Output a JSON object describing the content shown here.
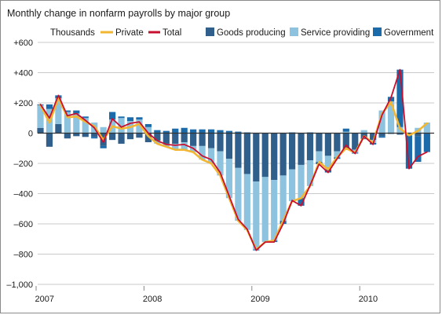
{
  "chart_data": {
    "type": "bar",
    "title": "Monthly change in nonfarm payrolls by major group",
    "ylabel": "Thousands",
    "xlabel": "",
    "ylim": [
      -1000,
      600
    ],
    "yticks": [
      600,
      400,
      200,
      0,
      -200,
      -400,
      -600,
      -800,
      -1000
    ],
    "ytick_labels": [
      "+600",
      "+400",
      "+200",
      "0",
      "–200",
      "–400",
      "–600",
      "–800",
      "–1,000"
    ],
    "x_axis": {
      "start": "2007-01",
      "end": "2010-08",
      "tick_labels": [
        "2007",
        "2008",
        "2009",
        "2010"
      ]
    },
    "grid": "horizontal",
    "legend": "top",
    "stacked": true,
    "colors": {
      "private": "#f2b632",
      "total": "#c8102e",
      "goods": "#2f5f8a",
      "service": "#8ec3df",
      "government": "#1b6aaa"
    },
    "months": [
      "2007-01",
      "2007-02",
      "2007-03",
      "2007-04",
      "2007-05",
      "2007-06",
      "2007-07",
      "2007-08",
      "2007-09",
      "2007-10",
      "2007-11",
      "2007-12",
      "2008-01",
      "2008-02",
      "2008-03",
      "2008-04",
      "2008-05",
      "2008-06",
      "2008-07",
      "2008-08",
      "2008-09",
      "2008-10",
      "2008-11",
      "2008-12",
      "2009-01",
      "2009-02",
      "2009-03",
      "2009-04",
      "2009-05",
      "2009-06",
      "2009-07",
      "2009-08",
      "2009-09",
      "2009-10",
      "2009-11",
      "2009-12",
      "2010-01",
      "2010-02",
      "2010-03",
      "2010-04",
      "2010-05",
      "2010-06",
      "2010-07",
      "2010-08"
    ],
    "series": [
      {
        "name": "Goods producing",
        "type": "bar",
        "values": [
          35,
          -90,
          60,
          -35,
          -20,
          -25,
          -25,
          -85,
          -45,
          -70,
          -40,
          -30,
          -60,
          -50,
          -70,
          -70,
          -60,
          -85,
          -85,
          -100,
          -120,
          -170,
          -230,
          -270,
          -320,
          -290,
          -310,
          -280,
          -240,
          -210,
          -180,
          -120,
          -150,
          -120,
          -110,
          -110,
          -40,
          -45,
          -20,
          -5,
          -10,
          -5,
          -20,
          -5
        ]
      },
      {
        "name": "Service providing",
        "type": "bar",
        "values": [
          150,
          160,
          170,
          140,
          130,
          100,
          70,
          40,
          90,
          100,
          80,
          90,
          40,
          -20,
          -20,
          -40,
          -50,
          -40,
          -90,
          -100,
          -160,
          -260,
          -350,
          -370,
          -450,
          -430,
          -400,
          -300,
          -210,
          -220,
          -170,
          -70,
          -90,
          -40,
          10,
          -20,
          20,
          -20,
          150,
          210,
          40,
          -10,
          35,
          70
        ]
      },
      {
        "name": "Government",
        "type": "bar",
        "values": [
          5,
          30,
          20,
          10,
          20,
          10,
          -10,
          -15,
          50,
          10,
          25,
          15,
          20,
          20,
          15,
          30,
          35,
          25,
          25,
          25,
          20,
          15,
          10,
          5,
          -5,
          0,
          -10,
          -20,
          5,
          -50,
          5,
          -15,
          -20,
          -10,
          20,
          -5,
          0,
          -10,
          -10,
          30,
          380,
          -220,
          -170,
          -120
        ]
      },
      {
        "name": "Private",
        "type": "line",
        "values": [
          185,
          70,
          230,
          105,
          110,
          75,
          45,
          -45,
          45,
          30,
          40,
          60,
          -20,
          -70,
          -90,
          -110,
          -110,
          -125,
          -175,
          -200,
          -280,
          -430,
          -580,
          -640,
          -770,
          -720,
          -710,
          -580,
          -450,
          -430,
          -350,
          -190,
          -240,
          -160,
          -100,
          -130,
          -20,
          -65,
          130,
          205,
          30,
          -15,
          15,
          65
        ]
      },
      {
        "name": "Total",
        "type": "line",
        "values": [
          190,
          100,
          250,
          115,
          130,
          85,
          35,
          -60,
          95,
          40,
          65,
          75,
          0,
          -50,
          -75,
          -80,
          -75,
          -100,
          -150,
          -175,
          -260,
          -415,
          -570,
          -635,
          -775,
          -720,
          -720,
          -600,
          -445,
          -480,
          -345,
          -205,
          -260,
          -170,
          -80,
          -135,
          -20,
          -75,
          120,
          235,
          420,
          -235,
          -155,
          -125
        ]
      }
    ]
  }
}
